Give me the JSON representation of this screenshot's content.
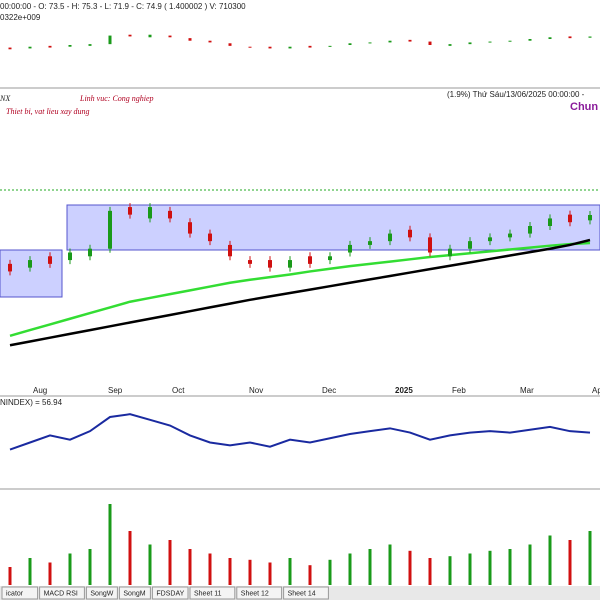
{
  "header": {
    "ohlc": "00:00:00 - O: 73.5 - H: 75.3 - L: 71.9 - C: 74.9 ( 1.400002 ) V: 710300",
    "sub": "0322e+009"
  },
  "main": {
    "symbol": "NX",
    "sector": "Linh vuc: Cong nghiep",
    "industry": "Thiet bi, vat lieu xay dung",
    "date_info": "(1.9%) Thứ Sáu/13/06/2025 00:00:00 -",
    "name": "Chun"
  },
  "axis_labels": [
    "Aug",
    "Sep",
    "Oct",
    "Nov",
    "Dec",
    "2025",
    "Feb",
    "Mar",
    "Ap"
  ],
  "chart_data": {
    "type": "candlestick",
    "ylim": [
      30,
      100
    ],
    "open": [
      62,
      61,
      64,
      63,
      64,
      66,
      77,
      74,
      76,
      73,
      70,
      67,
      63,
      63,
      61,
      64,
      63,
      65,
      67,
      68,
      71,
      69,
      64,
      66,
      68,
      69,
      70,
      72,
      75,
      73.5
    ],
    "close": [
      60,
      63,
      62,
      65,
      66,
      76,
      75,
      77,
      74,
      70,
      68,
      64,
      62,
      61,
      63,
      62,
      64,
      67,
      68,
      70,
      69,
      65,
      66,
      68,
      69,
      70,
      72,
      74,
      73,
      74.9
    ],
    "up_color": "#1a9a1a",
    "down_color": "#d01010",
    "series": [
      {
        "name": "MA",
        "color": "#33dd33",
        "values": [
          43,
          44.5,
          46,
          47.5,
          49,
          50.5,
          52,
          53,
          54,
          55,
          56,
          57,
          57.8,
          58.5,
          59.2,
          60,
          60.7,
          61.4,
          62,
          62.6,
          63.2,
          63.8,
          64.3,
          64.8,
          65.3,
          65.8,
          66.3,
          66.8,
          67.2,
          67.5
        ]
      },
      {
        "name": "MA long",
        "color": "#000000",
        "values": [
          40.5,
          41.5,
          42.5,
          43.5,
          44.5,
          45.5,
          46.5,
          47.5,
          48.5,
          49.5,
          50.5,
          51.5,
          52.5,
          53.4,
          54.3,
          55.2,
          56.1,
          57,
          57.9,
          58.8,
          59.7,
          60.6,
          61.5,
          62.4,
          63.3,
          64.2,
          65.1,
          66,
          67,
          68.3
        ]
      }
    ]
  },
  "rsi": {
    "label": "NINDEX) = 56.94",
    "ylim": [
      20,
      80
    ],
    "color": "#1a2aa0",
    "values": [
      45,
      50,
      55,
      52,
      58,
      68,
      70,
      66,
      62,
      55,
      50,
      48,
      50,
      47,
      52,
      50,
      53,
      56,
      58,
      60,
      57,
      52,
      55,
      57,
      58,
      57,
      59,
      61,
      58,
      56.94
    ]
  },
  "volume": {
    "ylim": [
      0,
      100
    ],
    "values": [
      20,
      30,
      25,
      35,
      40,
      90,
      60,
      45,
      50,
      40,
      35,
      30,
      28,
      25,
      30,
      22,
      28,
      35,
      40,
      45,
      38,
      30,
      32,
      35,
      38,
      40,
      45,
      55,
      50,
      60
    ]
  },
  "tabs": [
    "icator",
    "MACD RSI",
    "SongW",
    "SongM",
    "FDSDAY",
    "Sheet 11",
    "Sheet 12",
    "Sheet 14"
  ]
}
